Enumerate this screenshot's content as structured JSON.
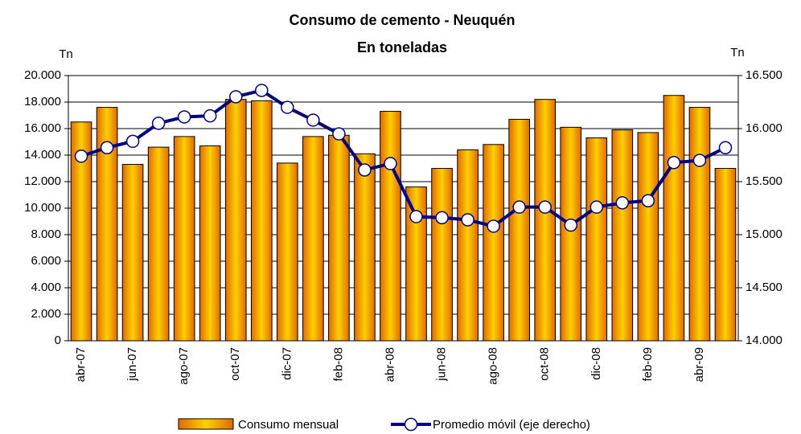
{
  "chart_data": {
    "type": "bar-line",
    "title": "Consumo de cemento - Neuquén",
    "subtitle": "En toneladas",
    "y_label": "Tn",
    "y2_label": "Tn",
    "categories": [
      "abr-07",
      null,
      "jun-07",
      null,
      "ago-07",
      null,
      "oct-07",
      null,
      "dic-07",
      null,
      "feb-08",
      null,
      "abr-08",
      null,
      "jun-08",
      null,
      "ago-08",
      null,
      "oct-08",
      null,
      "dic-08",
      null,
      "feb-09",
      null,
      "abr-09",
      null
    ],
    "series": [
      {
        "name": "Consumo mensual",
        "type": "bar",
        "color": "#ffd000",
        "values": [
          16500,
          17600,
          13300,
          14600,
          15400,
          14700,
          18200,
          18100,
          13400,
          15400,
          15500,
          14100,
          17300,
          11600,
          13000,
          14400,
          14800,
          16700,
          18200,
          16100,
          15300,
          15900,
          15700,
          18500,
          17600,
          13000
        ]
      },
      {
        "name": "Promedio móvil (eje derecho)",
        "type": "line",
        "axis": "y2",
        "color": "#000080",
        "values": [
          15740,
          15820,
          15880,
          16050,
          16110,
          16120,
          16300,
          16360,
          16200,
          16080,
          15950,
          15610,
          15670,
          15170,
          15160,
          15140,
          15080,
          15260,
          15260,
          15090,
          15260,
          15300,
          15320,
          15680,
          15700,
          15820
        ]
      }
    ],
    "ylim": [
      0,
      20000
    ],
    "yticks": [
      0,
      {
        "value": 2000,
        "label": "2.000"
      },
      {
        "value": 4000,
        "label": "4.000"
      },
      {
        "value": 6000,
        "label": "6.000"
      },
      {
        "value": 8000,
        "label": "8.000"
      },
      {
        "value": 10000,
        "label": "10.000"
      },
      {
        "value": 12000,
        "label": "12.000"
      },
      {
        "value": 14000,
        "label": "14.000"
      },
      {
        "value": 16000,
        "label": "16.000"
      },
      {
        "value": 18000,
        "label": "18.000"
      },
      {
        "value": 20000,
        "label": "20.000"
      }
    ],
    "y2lim": [
      14000,
      16500
    ],
    "y2ticks": [
      {
        "value": 14000,
        "label": "14.000"
      },
      {
        "value": 14500,
        "label": "14.500"
      },
      {
        "value": 15000,
        "label": "15.000"
      },
      {
        "value": 15500,
        "label": "15.500"
      },
      {
        "value": 16000,
        "label": "16.000"
      },
      {
        "value": 16500,
        "label": "16.500"
      }
    ],
    "grid": true,
    "legend": "bottom"
  }
}
